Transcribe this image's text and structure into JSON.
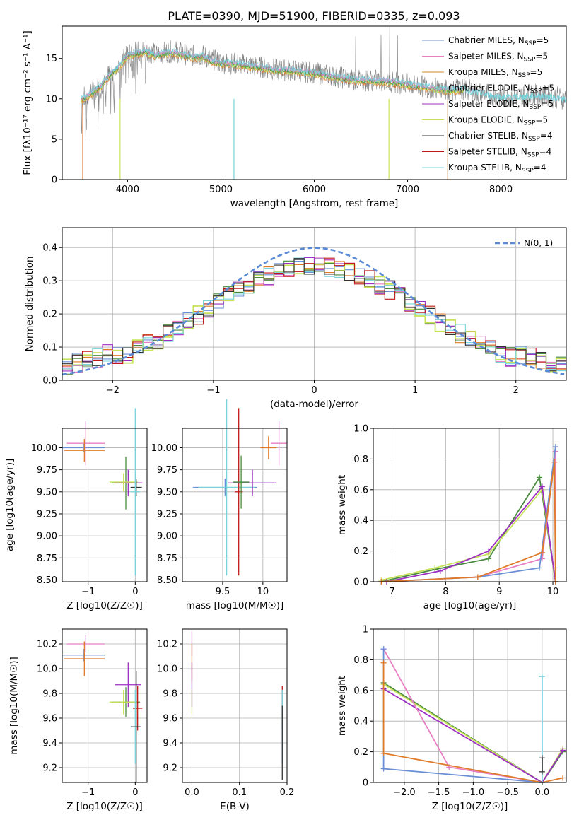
{
  "figure_title": "PLATE=0390, MJD=51900, FIBERID=0335, z=0.093",
  "colors": {
    "Chabrier MILES": "#6a8fd6",
    "Salpeter MILES": "#e87fc3",
    "Kroupa MILES": "#c98a2a",
    "Chabrier ELODIE": "#4a8a3e",
    "Salpeter ELODIE": "#9c2fc2",
    "Kroupa ELODIE": "#c8e35a",
    "Chabrier STELIB": "#333333",
    "Salpeter STELIB": "#c01818",
    "Kroupa STELIB": "#79d3dc",
    "orange": "#e07b2a",
    "gauss": "#5b8bd6"
  },
  "chart_data": [
    {
      "id": "spectrum",
      "type": "line",
      "xlabel": "wavelength [Angstrom, rest frame]",
      "xlim": [
        3300,
        8700
      ],
      "ylim": [
        0,
        19
      ],
      "xticks": [
        4000,
        5000,
        6000,
        7000,
        8000
      ],
      "yticks": [
        0,
        5,
        10,
        15
      ],
      "grid": false,
      "legend_loc": "upper right",
      "legend": [
        {
          "pre": "Chabrier MILES, N",
          "sub": "SSP",
          "post": "=5",
          "color_key": "Chabrier MILES"
        },
        {
          "pre": "Salpeter MILES, N",
          "sub": "SSP",
          "post": "=5",
          "color_key": "Salpeter MILES"
        },
        {
          "pre": "Kroupa MILES, N",
          "sub": "SSP",
          "post": "=5",
          "color_key": "Kroupa MILES"
        },
        {
          "pre": "Chabrier ELODIE, N",
          "sub": "SSP",
          "post": "=5",
          "color_key": "Chabrier ELODIE"
        },
        {
          "pre": "Salpeter ELODIE, N",
          "sub": "SSP",
          "post": "=5",
          "color_key": "Salpeter ELODIE"
        },
        {
          "pre": "Kroupa ELODIE, N",
          "sub": "SSP",
          "post": "=5",
          "color_key": "Kroupa ELODIE"
        },
        {
          "pre": "Chabrier STELIB, N",
          "sub": "SSP",
          "post": "=4",
          "color_key": "Chabrier STELIB"
        },
        {
          "pre": "Salpeter STELIB, N",
          "sub": "SSP",
          "post": "=4",
          "color_key": "Salpeter STELIB"
        },
        {
          "pre": "Kroupa STELIB, N",
          "sub": "SSP",
          "post": "=4",
          "color_key": "Kroupa STELIB"
        }
      ],
      "series": [
        {
          "name": "data",
          "color": "#808080",
          "x": [
            3500,
            3600,
            3700,
            3800,
            3900,
            4000,
            4100,
            4200,
            4300,
            4400,
            4500,
            4600,
            4700,
            4800,
            4900,
            5000,
            5200,
            5400,
            5600,
            5800,
            6000,
            6200,
            6400,
            6600,
            6800,
            7000,
            7200,
            7400,
            7600,
            7800,
            8000,
            8200,
            8400,
            8700
          ],
          "y": [
            10.0,
            10.8,
            11.6,
            13.0,
            14.0,
            15.5,
            15.8,
            16.0,
            15.5,
            15.8,
            15.9,
            15.6,
            15.3,
            15.4,
            14.8,
            14.5,
            14.3,
            14.0,
            13.6,
            13.5,
            13.2,
            12.8,
            12.4,
            12.3,
            12.2,
            11.8,
            11.5,
            11.1,
            11.2,
            10.7,
            10.3,
            10.3,
            10.5,
            10.0
          ]
        },
        {
          "name": "model",
          "color": "#79d3dc",
          "x": [
            3500,
            3600,
            3700,
            3800,
            3900,
            4000,
            4100,
            4200,
            4300,
            4400,
            4500,
            4600,
            4700,
            4800,
            4900,
            5000,
            5200,
            5400,
            5600,
            5800,
            6000,
            6200,
            6400,
            6600,
            6800,
            7000,
            7200,
            7400,
            7600,
            7800,
            8000,
            8200,
            8400,
            8700
          ],
          "y": [
            9.8,
            10.5,
            11.4,
            12.8,
            13.8,
            15.3,
            15.6,
            15.8,
            15.3,
            15.6,
            15.7,
            15.4,
            15.1,
            15.2,
            14.6,
            14.4,
            14.2,
            13.9,
            13.5,
            13.4,
            13.1,
            12.7,
            12.3,
            12.2,
            12.1,
            11.7,
            11.4,
            11.0,
            11.1,
            10.6,
            10.2,
            10.2,
            10.4,
            9.9
          ]
        }
      ]
    },
    {
      "id": "residuals",
      "type": "line",
      "xlabel": "(data-model)/error",
      "ylabel": "Normed distribution",
      "xlim": [
        -2.5,
        2.5
      ],
      "ylim": [
        0,
        0.46
      ],
      "xticks": [
        -2,
        -1,
        0,
        1,
        2
      ],
      "yticks": [
        0.0,
        0.1,
        0.2,
        0.3,
        0.4
      ],
      "grid": true,
      "legend_loc": "upper right",
      "legend_label": "N(0, 1)",
      "gaussian": {
        "mean": 0,
        "sigma": 1
      }
    },
    {
      "id": "z_age",
      "type": "scatter",
      "xlabel": "Z [log10(Z/Z☉)]",
      "ylabel": "age [log10(age/yr)]",
      "xlim": [
        -1.55,
        0.25
      ],
      "ylim": [
        8.48,
        10.22
      ],
      "xticks": [
        -1,
        0
      ],
      "yticks": [
        8.5,
        8.75,
        9.0,
        9.25,
        9.5,
        9.75,
        10.0
      ],
      "grid": true,
      "points": [
        {
          "color_key": "Chabrier MILES",
          "x": -1.1,
          "xerr": 0.45,
          "y": 10.0,
          "yerr": 0.05
        },
        {
          "color_key": "Salpeter MILES",
          "x": -1.05,
          "xerr": 0.4,
          "y": 10.05,
          "yerr": 0.25
        },
        {
          "color_key": "orange",
          "x": -1.08,
          "xerr": 0.43,
          "y": 9.97,
          "yerr": 0.13
        },
        {
          "color_key": "Chabrier ELODIE",
          "x": -0.2,
          "xerr": 0.3,
          "y": 9.6,
          "yerr": 0.3
        },
        {
          "color_key": "Salpeter ELODIE",
          "x": -0.15,
          "xerr": 0.3,
          "y": 9.6,
          "yerr": 0.15
        },
        {
          "color_key": "Kroupa ELODIE",
          "x": -0.25,
          "xerr": 0.3,
          "y": 9.61,
          "yerr": 0.1
        },
        {
          "color_key": "Chabrier STELIB",
          "x": 0.02,
          "xerr": 0.12,
          "y": 9.55,
          "yerr": 0.1
        },
        {
          "color_key": "Kroupa STELIB",
          "x": 0.0,
          "xerr": 0.1,
          "y": 9.5,
          "yerr": 0.95
        }
      ]
    },
    {
      "id": "mass_age",
      "type": "scatter",
      "xlabel": "mass [log10(M/M☉)]",
      "ylabel": "",
      "xlim": [
        9.0,
        10.3
      ],
      "ylim": [
        8.48,
        10.22
      ],
      "xticks": [
        9.5,
        10.0
      ],
      "yticks": [
        8.5,
        8.75,
        9.0,
        9.25,
        9.5,
        9.75,
        10.0
      ],
      "grid": true,
      "points": [
        {
          "color_key": "Chabrier MILES",
          "x": 9.53,
          "xerr": 0.4,
          "y": 9.55,
          "yerr": 0.1
        },
        {
          "color_key": "Kroupa STELIB",
          "x": 9.55,
          "xerr": 0.35,
          "y": 9.55,
          "yerr": 1.0
        },
        {
          "color_key": "Salpeter STELIB",
          "x": 9.7,
          "xerr": 0.05,
          "y": 9.5,
          "yerr": 0.95
        },
        {
          "color_key": "Salpeter ELODIE",
          "x": 9.87,
          "xerr": 0.3,
          "y": 9.6,
          "yerr": 0.15
        },
        {
          "color_key": "Chabrier ELODIE",
          "x": 9.73,
          "xerr": 0.1,
          "y": 9.61,
          "yerr": 0.3
        },
        {
          "color_key": "Salpeter MILES",
          "x": 10.2,
          "xerr": 0.1,
          "y": 10.05,
          "yerr": 0.25
        },
        {
          "color_key": "orange",
          "x": 10.07,
          "xerr": 0.1,
          "y": 10.0,
          "yerr": 0.13
        }
      ]
    },
    {
      "id": "age_weight",
      "type": "line",
      "xlabel": "age [log10(age/yr)]",
      "ylabel": "mass weight",
      "xlim": [
        6.65,
        10.25
      ],
      "ylim": [
        0,
        1.0
      ],
      "xticks": [
        7,
        8,
        9,
        10
      ],
      "yticks": [
        0.0,
        0.2,
        0.4,
        0.6,
        0.8,
        1.0
      ],
      "grid": true,
      "series": [
        {
          "color_key": "Chabrier ELODIE",
          "x": [
            6.8,
            7.8,
            8.8,
            9.75,
            10.05
          ],
          "y": [
            0.0,
            0.08,
            0.15,
            0.68,
            0.0
          ]
        },
        {
          "color_key": "Kroupa ELODIE",
          "x": [
            6.8,
            7.8,
            8.8,
            9.8,
            10.05
          ],
          "y": [
            0.01,
            0.09,
            0.18,
            0.6,
            0.0
          ]
        },
        {
          "color_key": "Salpeter ELODIE",
          "x": [
            6.9,
            7.9,
            8.8,
            9.8,
            10.05
          ],
          "y": [
            0.0,
            0.07,
            0.2,
            0.62,
            0.0
          ]
        },
        {
          "color_key": "Salpeter MILES",
          "x": [
            6.8,
            8.6,
            9.8,
            10.05,
            10.05
          ],
          "y": [
            0.0,
            0.03,
            0.15,
            0.85,
            0.09
          ]
        },
        {
          "color_key": "Chabrier MILES",
          "x": [
            6.8,
            8.6,
            9.75,
            10.05
          ],
          "y": [
            0.0,
            0.03,
            0.09,
            0.88
          ]
        },
        {
          "color_key": "orange",
          "x": [
            6.8,
            8.6,
            9.8,
            10.03,
            10.05
          ],
          "y": [
            0.0,
            0.03,
            0.19,
            0.78,
            0.0
          ]
        }
      ]
    },
    {
      "id": "z_mass",
      "type": "scatter",
      "xlabel": "Z [log10(Z/Z☉)]",
      "ylabel": "mass [log10(M/M☉)]",
      "xlim": [
        -1.55,
        0.25
      ],
      "ylim": [
        9.08,
        10.32
      ],
      "xticks": [
        -1,
        0
      ],
      "yticks": [
        9.2,
        9.4,
        9.6,
        9.8,
        10.0,
        10.2
      ],
      "grid": true,
      "points": [
        {
          "color_key": "Salpeter MILES",
          "x": -1.05,
          "xerr": 0.4,
          "y": 10.2,
          "yerr": 0.07
        },
        {
          "color_key": "Chabrier MILES",
          "x": -1.1,
          "xerr": 0.45,
          "y": 10.11,
          "yerr": 0.05
        },
        {
          "color_key": "orange",
          "x": -1.08,
          "xerr": 0.43,
          "y": 10.08,
          "yerr": 0.14
        },
        {
          "color_key": "Salpeter ELODIE",
          "x": -0.15,
          "xerr": 0.28,
          "y": 9.87,
          "yerr": 0.18
        },
        {
          "color_key": "Chabrier ELODIE",
          "x": -0.2,
          "xerr": 0.3,
          "y": 9.73,
          "yerr": 0.12
        },
        {
          "color_key": "Kroupa ELODIE",
          "x": -0.25,
          "xerr": 0.3,
          "y": 9.73,
          "yerr": 0.1
        },
        {
          "color_key": "Salpeter STELIB",
          "x": 0.05,
          "xerr": 0.1,
          "y": 9.68,
          "yerr": 0.18
        },
        {
          "color_key": "Kroupa STELIB",
          "x": 0.0,
          "xerr": 0.1,
          "y": 9.53,
          "yerr": 0.3
        },
        {
          "color_key": "Chabrier STELIB",
          "x": 0.02,
          "xerr": 0.1,
          "y": 9.53,
          "yerr": 0.45
        }
      ]
    },
    {
      "id": "ebv_mass",
      "type": "scatter",
      "xlabel": "E(B-V)",
      "ylabel": "",
      "xlim": [
        -0.02,
        0.2
      ],
      "ylim": [
        9.08,
        10.32
      ],
      "xticks": [
        0.0,
        0.1,
        0.2
      ],
      "yticks": [
        9.2,
        9.4,
        9.6,
        9.8,
        10.0,
        10.2
      ],
      "grid": true,
      "points": [
        {
          "color_key": "Salpeter MILES",
          "x": 0.0,
          "xerr": 0.0,
          "y": 10.2,
          "yerr": 0.1
        },
        {
          "color_key": "orange",
          "x": 0.0,
          "xerr": 0.0,
          "y": 10.05,
          "yerr": 0.15
        },
        {
          "color_key": "Salpeter ELODIE",
          "x": 0.0,
          "xerr": 0.0,
          "y": 9.87,
          "yerr": 0.18
        },
        {
          "color_key": "Kroupa ELODIE",
          "x": 0.0,
          "xerr": 0.0,
          "y": 9.73,
          "yerr": 0.1
        },
        {
          "color_key": "Salpeter STELIB",
          "x": 0.19,
          "xerr": 0.0,
          "y": 9.68,
          "yerr": 0.18
        },
        {
          "color_key": "Kroupa STELIB",
          "x": 0.19,
          "xerr": 0.0,
          "y": 9.53,
          "yerr": 0.3
        },
        {
          "color_key": "Chabrier STELIB",
          "x": 0.19,
          "xerr": 0.0,
          "y": 9.4,
          "yerr": 0.3
        }
      ]
    },
    {
      "id": "z_weight",
      "type": "line",
      "xlabel": "Z [log10(Z/Z☉)]",
      "ylabel": "mass weight",
      "xlim": [
        -2.45,
        0.35
      ],
      "ylim": [
        0,
        1.0
      ],
      "xticks": [
        -2.0,
        -1.5,
        -1.0,
        -0.5,
        0.0
      ],
      "yticks": [
        0.0,
        0.2,
        0.4,
        0.6,
        0.8,
        1.0
      ],
      "grid": true,
      "series": [
        {
          "color_key": "Chabrier ELODIE",
          "x": [
            -2.3,
            0.0,
            0.3
          ],
          "y": [
            0.65,
            0.0,
            0.2
          ]
        },
        {
          "color_key": "Kroupa ELODIE",
          "x": [
            -2.3,
            0.0,
            0.3
          ],
          "y": [
            0.64,
            0.0,
            0.22
          ]
        },
        {
          "color_key": "Salpeter ELODIE",
          "x": [
            -2.3,
            0.0,
            0.3
          ],
          "y": [
            0.61,
            0.0,
            0.21
          ]
        },
        {
          "color_key": "Salpeter MILES",
          "x": [
            -2.3,
            -1.35,
            0.0
          ],
          "y": [
            0.87,
            0.1,
            0.0
          ]
        },
        {
          "color_key": "Chabrier MILES",
          "x": [
            -2.3,
            -2.3,
            0.0
          ],
          "y": [
            0.87,
            0.09,
            0.0
          ]
        },
        {
          "color_key": "orange",
          "x": [
            -2.3,
            -2.3,
            0.0,
            0.3
          ],
          "y": [
            0.78,
            0.19,
            0.0,
            0.03
          ]
        },
        {
          "color_key": "Kroupa STELIB",
          "x": [
            0.0,
            0.0
          ],
          "y": [
            0.0,
            0.69
          ]
        },
        {
          "color_key": "Chabrier STELIB",
          "x": [
            0.0,
            0.0
          ],
          "y": [
            0.07,
            0.16
          ]
        }
      ]
    }
  ]
}
